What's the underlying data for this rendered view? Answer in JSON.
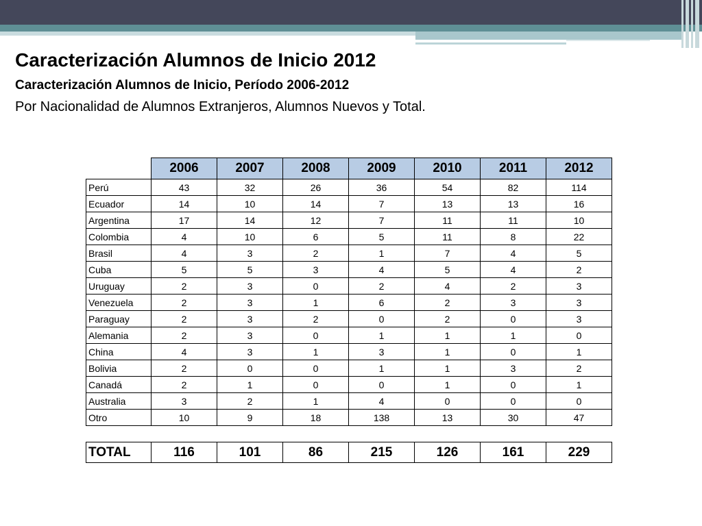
{
  "slide": {
    "title": "Caracterización Alumnos de Inicio 2012",
    "subtitle": "Caracterización Alumnos de Inicio, Período 2006-2012",
    "description": "Por Nacionalidad de Alumnos Extranjeros, Alumnos Nuevos y Total."
  },
  "colors": {
    "header_dark": "#44475a",
    "header_teal": "#5f8f95",
    "year_header_bg": "#b8cce4"
  },
  "table": {
    "years": [
      "2006",
      "2007",
      "2008",
      "2009",
      "2010",
      "2011",
      "2012"
    ],
    "rows": [
      {
        "label": "Perú",
        "values": [
          "43",
          "32",
          "26",
          "36",
          "54",
          "82",
          "114"
        ]
      },
      {
        "label": "Ecuador",
        "values": [
          "14",
          "10",
          "14",
          "7",
          "13",
          "13",
          "16"
        ]
      },
      {
        "label": "Argentina",
        "values": [
          "17",
          "14",
          "12",
          "7",
          "11",
          "11",
          "10"
        ]
      },
      {
        "label": "Colombia",
        "values": [
          "4",
          "10",
          "6",
          "5",
          "11",
          "8",
          "22"
        ]
      },
      {
        "label": "Brasil",
        "values": [
          "4",
          "3",
          "2",
          "1",
          "7",
          "4",
          "5"
        ]
      },
      {
        "label": "Cuba",
        "values": [
          "5",
          "5",
          "3",
          "4",
          "5",
          "4",
          "2"
        ]
      },
      {
        "label": "Uruguay",
        "values": [
          "2",
          "3",
          "0",
          "2",
          "4",
          "2",
          "3"
        ]
      },
      {
        "label": "Venezuela",
        "values": [
          "2",
          "3",
          "1",
          "6",
          "2",
          "3",
          "3"
        ]
      },
      {
        "label": "Paraguay",
        "values": [
          "2",
          "3",
          "2",
          "0",
          "2",
          "0",
          "3"
        ]
      },
      {
        "label": "Alemania",
        "values": [
          "2",
          "3",
          "0",
          "1",
          "1",
          "1",
          "0"
        ]
      },
      {
        "label": "China",
        "values": [
          "4",
          "3",
          "1",
          "3",
          "1",
          "0",
          "1"
        ]
      },
      {
        "label": "Bolivia",
        "values": [
          "2",
          "0",
          "0",
          "1",
          "1",
          "3",
          "2"
        ]
      },
      {
        "label": "Canadá",
        "values": [
          "2",
          "1",
          "0",
          "0",
          "1",
          "0",
          "1"
        ]
      },
      {
        "label": "Australia",
        "values": [
          "3",
          "2",
          "1",
          "4",
          "0",
          "0",
          "0"
        ]
      },
      {
        "label": "Otro",
        "values": [
          "10",
          "9",
          "18",
          "138",
          "13",
          "30",
          "47"
        ]
      }
    ],
    "total": {
      "label": "TOTAL",
      "values": [
        "116",
        "101",
        "86",
        "215",
        "126",
        "161",
        "229"
      ]
    }
  }
}
